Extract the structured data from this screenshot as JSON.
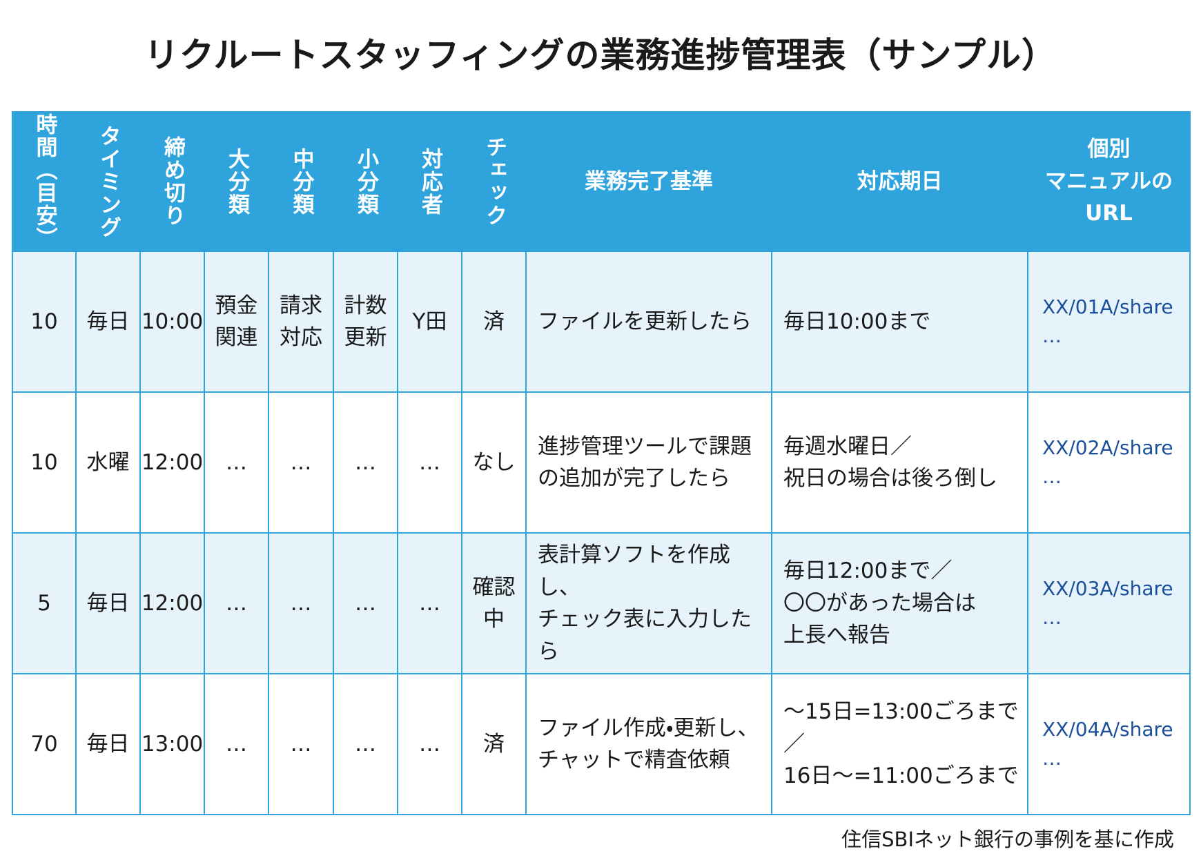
{
  "title": "リクルートスタッフィングの業務進捗管理表（サンプル）",
  "table": {
    "header": [
      "時間（目安）",
      "タイミング",
      "締め切り",
      "大分類",
      "中分類",
      "小分類",
      "対応者",
      "チェック",
      "業務完了基準",
      "対応期日",
      [
        "個別",
        "マニュアルの",
        "URL"
      ]
    ],
    "rows": [
      [
        10,
        "毎日",
        "10:00",
        [
          "預金",
          "関連"
        ],
        [
          "請求",
          "対応"
        ],
        [
          "計数",
          "更新"
        ],
        "Y田",
        "済",
        [
          "ファイルを更新したら"
        ],
        [
          "毎日10:00まで"
        ],
        [
          "XX/01A/share",
          "…"
        ]
      ],
      [
        10,
        "水曜",
        "12:00",
        "…",
        "…",
        "…",
        "…",
        "なし",
        [
          "進捗管理ツールで課題",
          "の追加が完了したら"
        ],
        [
          "毎週水曜日／",
          "祝日の場合は後ろ倒し"
        ],
        [
          "XX/02A/share",
          "…"
        ]
      ],
      [
        5,
        "毎日",
        "12:00",
        "…",
        "…",
        "…",
        "…",
        [
          "確認",
          "中"
        ],
        [
          "表計算ソフトを作成し、",
          "チェック表に入力したら"
        ],
        [
          "毎日12:00まで／",
          "〇〇があった場合は",
          "上長へ報告"
        ],
        [
          "XX/03A/share",
          "…"
        ]
      ],
      [
        70,
        "毎日",
        "13:00",
        "…",
        "…",
        "…",
        "…",
        "済",
        [
          "ファイル作成・更新し、",
          "チャットで精査依頼"
        ],
        [
          "～15日=13:00ごろまで／",
          "16日～=11:00ごろまで"
        ],
        [
          "XX/04A/share",
          "…"
        ]
      ]
    ]
  },
  "footer": "住信SBIネット銀行の事例を基に作成"
}
